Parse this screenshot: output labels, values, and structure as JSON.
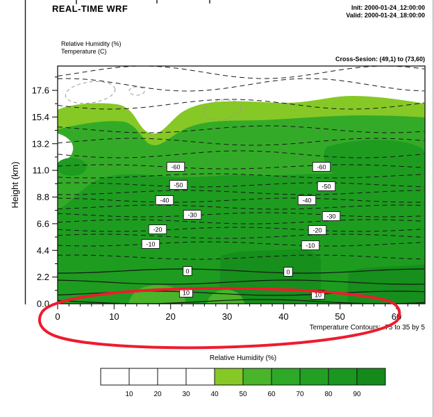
{
  "header": {
    "title": "REAL-TIME WRF",
    "init": "Init: 2000-01-24_12:00:00",
    "valid": "Valid: 2000-01-24_18:00:00",
    "humidity_label": "Relative Humidity  (%)",
    "temperature_label": "Temperature  (C)",
    "cross_section": "Cross-Sesion: (49,1) to (73,60)"
  },
  "chart_data": {
    "type": "heatmap",
    "title": "REAL-TIME WRF",
    "subtitle": "Cross-Sesion: (49,1) to (73,60)",
    "shaded_field": "Relative Humidity (%)",
    "contour_field": "Temperature (C)",
    "xlabel": "",
    "ylabel": "Height (km)",
    "x_ticks": [
      0,
      10,
      20,
      30,
      40,
      50,
      60
    ],
    "x_range": [
      0,
      65
    ],
    "y_tick_labels": [
      "0.0",
      "2.2",
      "4.4",
      "6.6",
      "8.8",
      "11.0",
      "13.2",
      "15.4",
      "17.6"
    ],
    "y_range_km": [
      0,
      19.6
    ],
    "contour_note": "Temperature Contours: -75 to 35 by 5",
    "temperature_contours": {
      "min": -75,
      "max": 35,
      "step": 5,
      "dashed_below": 0
    },
    "contour_labels": [
      {
        "value": "-60",
        "points": [
          [
            253,
            240
          ],
          [
            463,
            240
          ]
        ]
      },
      {
        "value": "-50",
        "points": [
          [
            257,
            266
          ],
          [
            470,
            268
          ]
        ]
      },
      {
        "value": "-40",
        "points": [
          [
            237,
            288
          ],
          [
            442,
            288
          ]
        ]
      },
      {
        "value": "-30",
        "points": [
          [
            277,
            309
          ],
          [
            477,
            311
          ]
        ]
      },
      {
        "value": "-20",
        "points": [
          [
            227,
            330
          ],
          [
            457,
            331
          ]
        ]
      },
      {
        "value": "-10",
        "points": [
          [
            217,
            351
          ],
          [
            447,
            353
          ]
        ]
      },
      {
        "value": "0",
        "points": [
          [
            270,
            390
          ],
          [
            415,
            391
          ]
        ]
      },
      {
        "value": "10",
        "points": [
          [
            268,
            421
          ],
          [
            458,
            424
          ]
        ]
      }
    ],
    "colorbar": {
      "title": "Relative Humidity  (%)",
      "tick_labels": [
        "10",
        "20",
        "30",
        "40",
        "50",
        "60",
        "70",
        "80",
        "90"
      ],
      "cell_colors": [
        "#ffffff",
        "#ffffff",
        "#ffffff",
        "#ffffff",
        "#86c826",
        "#4ab42a",
        "#2ea827",
        "#23a023",
        "#1b9620",
        "#158a1b"
      ]
    },
    "annotation": {
      "type": "freehand-circle",
      "color": "#ed1c2e",
      "encircles": "surface levels at bottom of plot and the x-axis labels"
    }
  }
}
